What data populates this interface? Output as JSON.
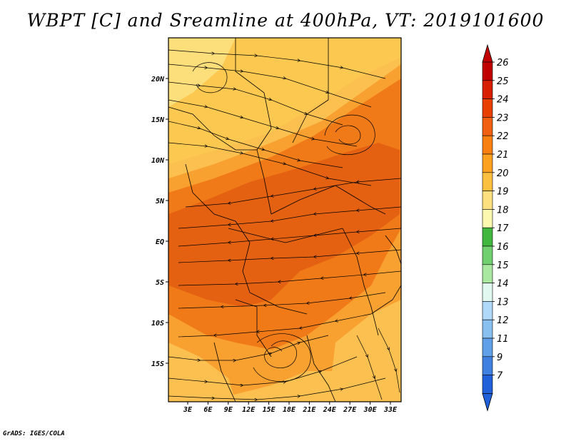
{
  "title": "WBPT [C] and Sreamline at 400hPa, VT: 2019101600",
  "credit": "GrADS: IGES/COLA",
  "axes": {
    "lat_labels": [
      "20N",
      "15N",
      "10N",
      "5N",
      "EQ",
      "5S",
      "10S",
      "15S"
    ],
    "lon_labels": [
      "3E",
      "6E",
      "9E",
      "12E",
      "15E",
      "18E",
      "21E",
      "24E",
      "27E",
      "30E",
      "33E"
    ]
  },
  "colorbar": {
    "labels": [
      "26",
      "25",
      "24",
      "23",
      "22",
      "21",
      "20",
      "19",
      "18",
      "17",
      "16",
      "15",
      "14",
      "13",
      "12",
      "11",
      "9",
      "7"
    ],
    "colors": [
      "#c00000",
      "#d82000",
      "#e84000",
      "#f06010",
      "#f88010",
      "#fca020",
      "#fcc040",
      "#fce080",
      "#fcf8b0",
      "#40b840",
      "#70d070",
      "#a8e8a0",
      "#e0f8f0",
      "#b0d8f8",
      "#88c0f0",
      "#60a0e8",
      "#4080e0",
      "#2060d8"
    ]
  },
  "colors": {
    "warmest": "#e05a10",
    "warm": "#f07a18",
    "mid": "#f8a030",
    "cool": "#fcc050",
    "coolest": "#fce080",
    "background": "#ffffff",
    "streamline": "#000000"
  }
}
